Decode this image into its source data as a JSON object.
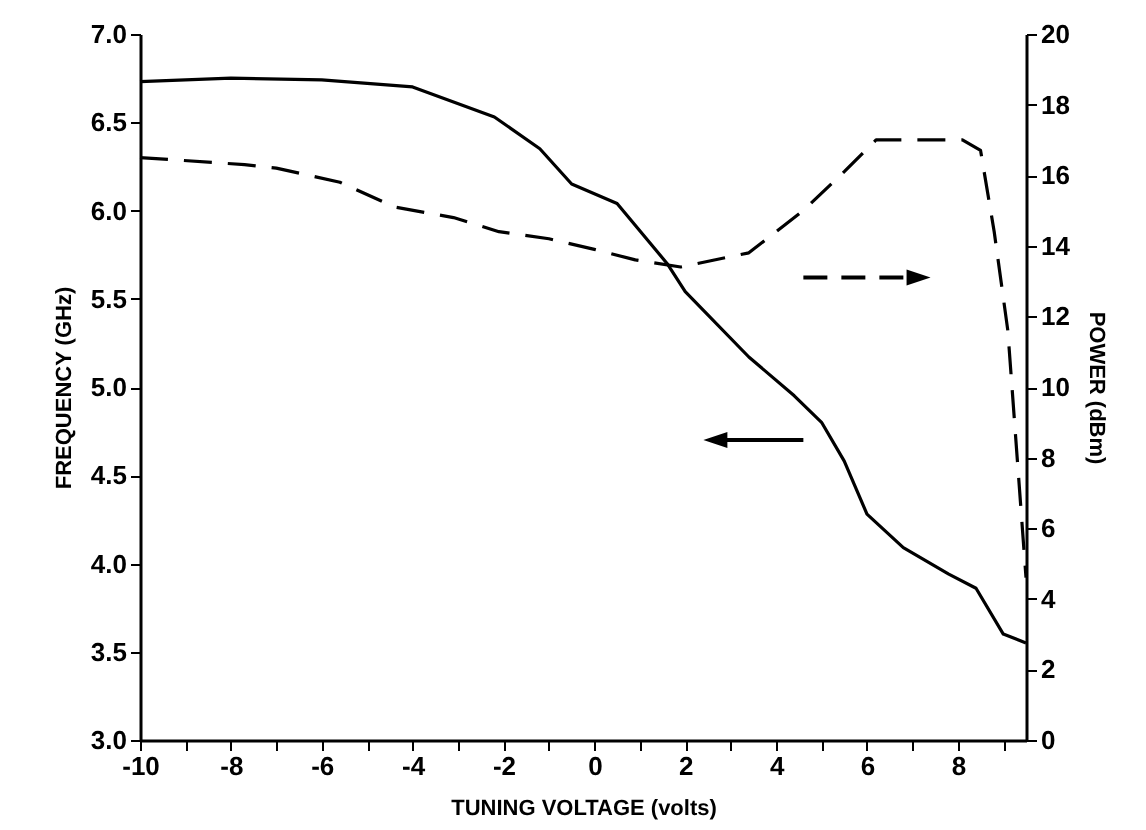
{
  "chart_data": {
    "type": "line",
    "xlabel": "TUNING VOLTAGE (volts)",
    "ylabel": "FREQUENCY (GHz)",
    "y2label": "POWER (dBm)",
    "xlim": [
      -10,
      9.5
    ],
    "xticks": [
      -10,
      {
        "value": -9,
        "label": null
      },
      -8,
      {
        "value": -7,
        "label": null
      },
      -6,
      {
        "value": -5,
        "label": null
      },
      -4,
      {
        "value": -3,
        "label": null
      },
      -2,
      {
        "value": -1,
        "label": null
      },
      0,
      {
        "value": 1,
        "label": null
      },
      2,
      {
        "value": 3,
        "label": null
      },
      4,
      {
        "value": 5,
        "label": null
      },
      6,
      {
        "value": 7,
        "label": null
      },
      8,
      {
        "value": 9,
        "label": null
      }
    ],
    "ylim": [
      3,
      7
    ],
    "yticks": [
      {
        "value": 3,
        "label": "3.0"
      },
      {
        "value": 3.5,
        "label": "3.5"
      },
      {
        "value": 4,
        "label": "4.0"
      },
      {
        "value": 4.5,
        "label": "4.5"
      },
      {
        "value": 5,
        "label": "5.0"
      },
      {
        "value": 5.5,
        "label": "5.5"
      },
      {
        "value": 6,
        "label": "6.0"
      },
      {
        "value": 6.5,
        "label": "6.5"
      },
      {
        "value": 7,
        "label": "7.0"
      }
    ],
    "y2lim": [
      0,
      20
    ],
    "y2ticks": [
      0,
      2,
      4,
      6,
      8,
      10,
      12,
      14,
      16,
      18,
      20
    ],
    "grid": false,
    "marker": "none",
    "series": [
      {
        "color": "#000000",
        "line_style": "solid",
        "x": [
          -10,
          -8,
          -6,
          -4,
          -2.2,
          -1.2,
          -0.5,
          0.5,
          1.6,
          2,
          3.4,
          4.4,
          5,
          5.5,
          6,
          6.8,
          7.8,
          8.4,
          9,
          9.5
        ],
        "values": [
          6.73,
          6.75,
          6.74,
          6.7,
          6.53,
          6.35,
          6.15,
          6.04,
          5.7,
          5.54,
          5.17,
          4.95,
          4.8,
          4.58,
          4.28,
          4.09,
          3.94,
          3.86,
          3.6,
          3.55
        ]
      },
      {
        "color": "#000000",
        "line_style": "dashed",
        "axis": "y2",
        "x": [
          -10,
          -7.7,
          -7,
          -5.6,
          -4.4,
          -3.1,
          -2.1,
          -1,
          0,
          0.9,
          1.9,
          3.4,
          4.6,
          5.5,
          6.2,
          8.1,
          8.5,
          8.8,
          9.1,
          9.5
        ],
        "values": [
          16.5,
          16.3,
          16.2,
          15.8,
          15.1,
          14.8,
          14.4,
          14.2,
          13.9,
          13.6,
          13.4,
          13.8,
          15,
          16.1,
          17,
          17,
          16.7,
          14.4,
          11.6,
          4.6
        ]
      }
    ]
  }
}
